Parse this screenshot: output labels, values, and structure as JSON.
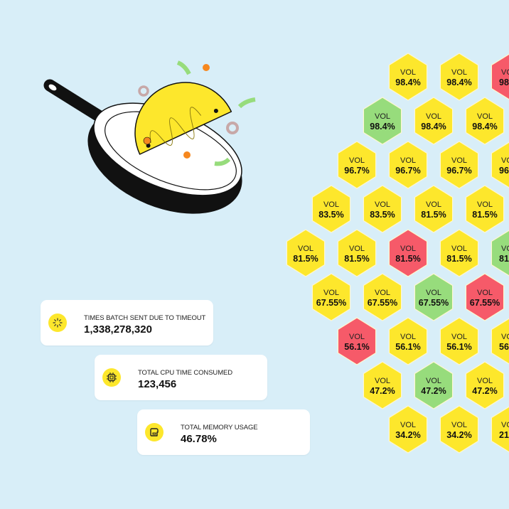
{
  "colors": {
    "background": "#d8eef8",
    "yellow": "#fde72c",
    "green": "#97dc7c",
    "red": "#f65a69"
  },
  "illustration": "frying-pan-flipping-taco",
  "metrics": [
    {
      "icon": "loading-spinner-icon",
      "label": "TIMES BATCH SENT DUE TO TIMEOUT",
      "value": "1,338,278,320"
    },
    {
      "icon": "cpu-chip-icon",
      "label": "TOTAL CPU TIME CONSUMED",
      "value": "123,456"
    },
    {
      "icon": "memory-icon",
      "label": "TOTAL MEMORY USAGE",
      "value": "46.78%"
    }
  ],
  "hex_grid": {
    "label": "VOL",
    "rows": [
      [
        {
          "v": "98.4%",
          "s": "yellow"
        },
        {
          "v": "98.4%",
          "s": "yellow"
        },
        {
          "v": "98.",
          "s": "red",
          "partial": true
        }
      ],
      [
        {
          "v": "98.4%",
          "s": "green"
        },
        {
          "v": "98.4%",
          "s": "yellow"
        },
        {
          "v": "98.4%",
          "s": "yellow"
        }
      ],
      [
        {
          "v": "96.7%",
          "s": "yellow"
        },
        {
          "v": "96.7%",
          "s": "yellow"
        },
        {
          "v": "96.7%",
          "s": "yellow"
        },
        {
          "v": "96.",
          "s": "yellow",
          "partial": true
        }
      ],
      [
        {
          "v": "83.5%",
          "s": "yellow"
        },
        {
          "v": "83.5%",
          "s": "yellow"
        },
        {
          "v": "81.5%",
          "s": "yellow"
        },
        {
          "v": "81.5%",
          "s": "yellow"
        }
      ],
      [
        {
          "v": "81.5%",
          "s": "yellow"
        },
        {
          "v": "81.5%",
          "s": "yellow"
        },
        {
          "v": "81.5%",
          "s": "red"
        },
        {
          "v": "81.5%",
          "s": "yellow"
        },
        {
          "v": "81.",
          "s": "green",
          "partial": true
        }
      ],
      [
        {
          "v": "67.55%",
          "s": "yellow"
        },
        {
          "v": "67.55%",
          "s": "yellow"
        },
        {
          "v": "67.55%",
          "s": "green"
        },
        {
          "v": "67.55%",
          "s": "red"
        }
      ],
      [
        {
          "v": "56.1%",
          "s": "red"
        },
        {
          "v": "56.1%",
          "s": "yellow"
        },
        {
          "v": "56.1%",
          "s": "yellow"
        },
        {
          "v": "56.",
          "s": "yellow",
          "partial": true
        }
      ],
      [
        {
          "v": "47.2%",
          "s": "yellow"
        },
        {
          "v": "47.2%",
          "s": "green"
        },
        {
          "v": "47.2%",
          "s": "yellow"
        }
      ],
      [
        {
          "v": "34.2%",
          "s": "yellow"
        },
        {
          "v": "34.2%",
          "s": "yellow"
        },
        {
          "v": "21.",
          "s": "yellow",
          "partial": true
        }
      ]
    ]
  }
}
